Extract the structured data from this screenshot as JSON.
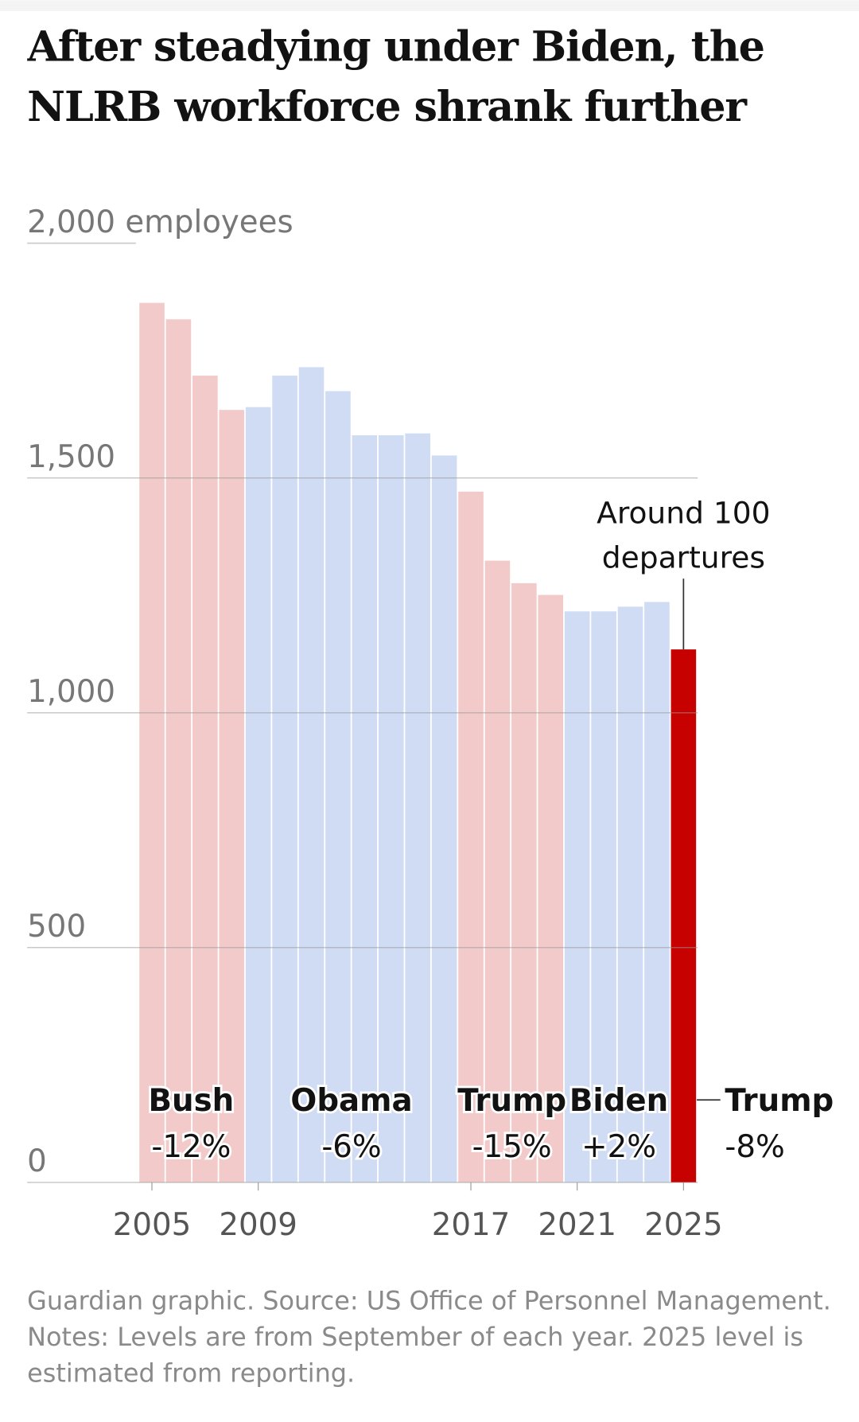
{
  "chart_data": {
    "type": "bar",
    "title": "After steadying under Biden, the NLRB workforce shrank further",
    "x": [
      2005,
      2006,
      2007,
      2008,
      2009,
      2010,
      2011,
      2012,
      2013,
      2014,
      2015,
      2016,
      2017,
      2018,
      2019,
      2020,
      2021,
      2022,
      2023,
      2024,
      2025
    ],
    "values": [
      1873,
      1838,
      1718,
      1645,
      1651,
      1718,
      1736,
      1685,
      1591,
      1591,
      1595,
      1548,
      1471,
      1324,
      1276,
      1251,
      1216,
      1216,
      1226,
      1236,
      1135
    ],
    "colors": [
      "#f3caca",
      "#f3caca",
      "#f3caca",
      "#f3caca",
      "#cfdcf4",
      "#cfdcf4",
      "#cfdcf4",
      "#cfdcf4",
      "#cfdcf4",
      "#cfdcf4",
      "#cfdcf4",
      "#cfdcf4",
      "#f3caca",
      "#f3caca",
      "#f3caca",
      "#f3caca",
      "#cfdcf4",
      "#cfdcf4",
      "#cfdcf4",
      "#cfdcf4",
      "#c70000"
    ],
    "ylim": [
      0,
      2000
    ],
    "yticks": [
      0,
      500,
      {
        "value": 1000,
        "label": "1,000"
      },
      {
        "value": 1500,
        "label": "1,500"
      },
      {
        "value": 2000,
        "label": "2,000 employees"
      }
    ],
    "xticks": [
      2005,
      2009,
      2017,
      2021,
      2025
    ],
    "grid": true,
    "eras": [
      {
        "name": "Bush",
        "change": "-12%"
      },
      {
        "name": "Obama",
        "change": "-6%"
      },
      {
        "name": "Trump",
        "change": "-15%"
      },
      {
        "name": "Biden",
        "change": "+2%"
      },
      {
        "name": "Trump",
        "change": "-8%"
      }
    ],
    "annotation": [
      "Around 100",
      "departures"
    ],
    "note": "Guardian graphic. Source: US Office of Personnel Management. Notes: Levels are from September of each year. 2025 level is estimated from reporting."
  }
}
